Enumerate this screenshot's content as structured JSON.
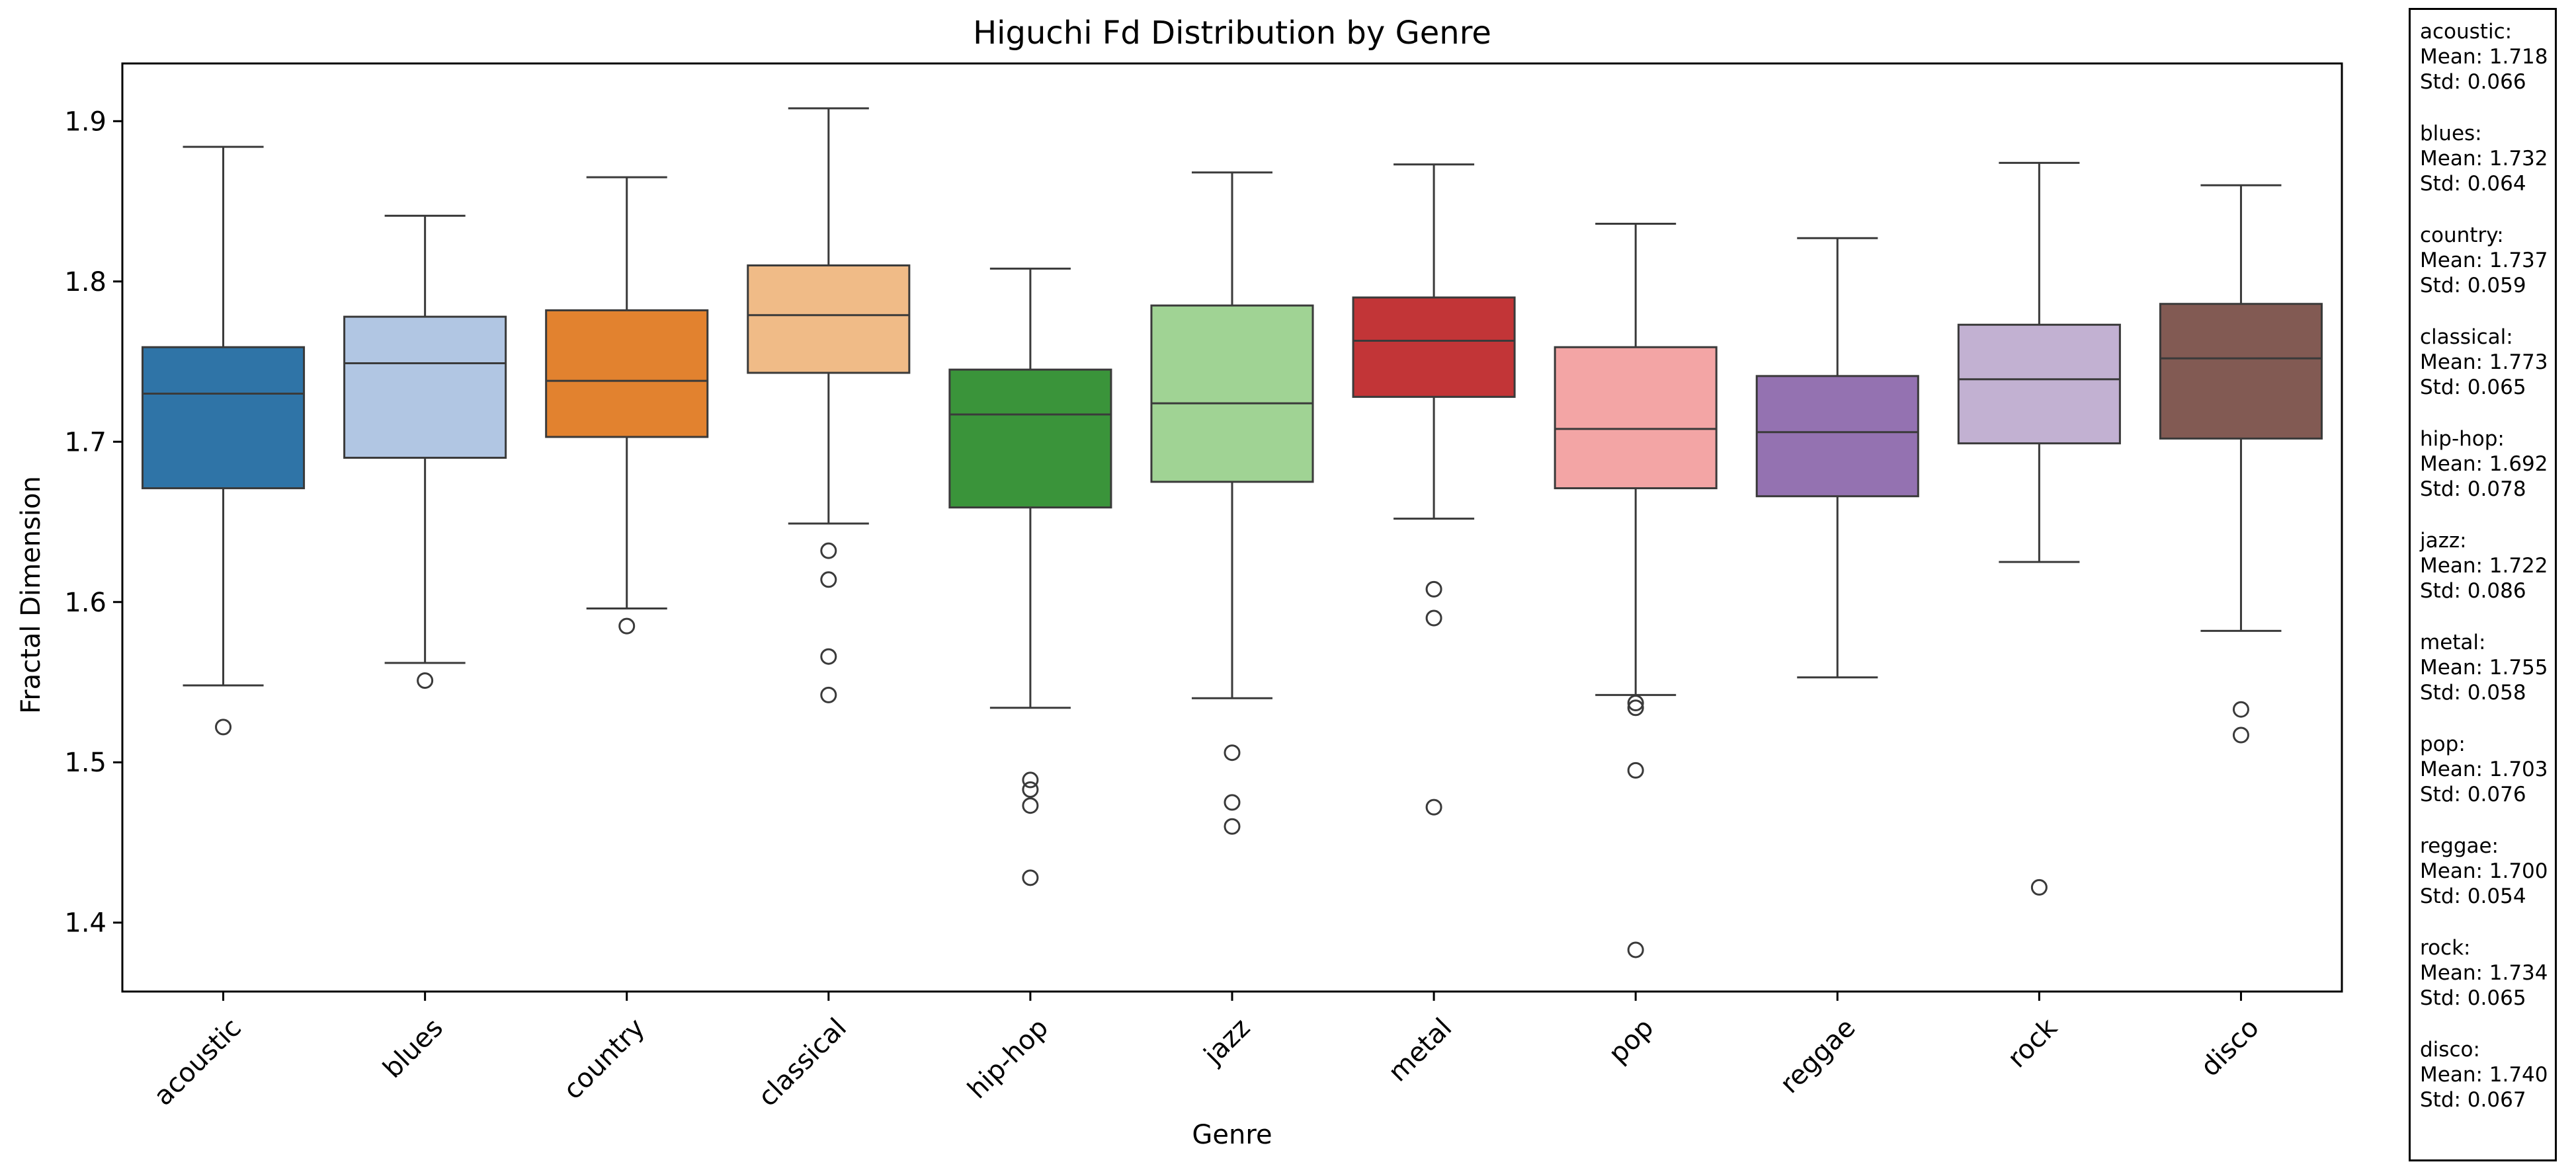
{
  "chart_data": {
    "type": "box",
    "title": "Higuchi Fd Distribution by Genre",
    "xlabel": "Genre",
    "ylabel": "Fractal Dimension",
    "ylim": [
      1.357,
      1.936
    ],
    "yticks": [
      1.4,
      1.5,
      1.6,
      1.7,
      1.8,
      1.9
    ],
    "grid": false,
    "categories": [
      "acoustic",
      "blues",
      "country",
      "classical",
      "hip-hop",
      "jazz",
      "metal",
      "pop",
      "reggae",
      "rock",
      "disco"
    ],
    "colors": [
      "#2f74a7",
      "#b1c6e3",
      "#e2822f",
      "#f0bb87",
      "#3a943a",
      "#a0d394",
      "#c23537",
      "#f3a5a5",
      "#9472b1",
      "#c2b1d2",
      "#825a53"
    ],
    "boxes": [
      {
        "genre": "acoustic",
        "whisker_low": 1.548,
        "q1": 1.671,
        "median": 1.73,
        "q3": 1.759,
        "whisker_high": 1.884,
        "outliers": [
          1.522
        ]
      },
      {
        "genre": "blues",
        "whisker_low": 1.562,
        "q1": 1.69,
        "median": 1.749,
        "q3": 1.778,
        "whisker_high": 1.841,
        "outliers": [
          1.551
        ]
      },
      {
        "genre": "country",
        "whisker_low": 1.596,
        "q1": 1.703,
        "median": 1.738,
        "q3": 1.782,
        "whisker_high": 1.865,
        "outliers": [
          1.585
        ]
      },
      {
        "genre": "classical",
        "whisker_low": 1.649,
        "q1": 1.743,
        "median": 1.779,
        "q3": 1.81,
        "whisker_high": 1.908,
        "outliers": [
          1.632,
          1.614,
          1.566,
          1.542
        ]
      },
      {
        "genre": "hip-hop",
        "whisker_low": 1.534,
        "q1": 1.659,
        "median": 1.717,
        "q3": 1.745,
        "whisker_high": 1.808,
        "outliers": [
          1.489,
          1.483,
          1.473,
          1.428
        ]
      },
      {
        "genre": "jazz",
        "whisker_low": 1.54,
        "q1": 1.675,
        "median": 1.724,
        "q3": 1.785,
        "whisker_high": 1.868,
        "outliers": [
          1.506,
          1.475,
          1.46
        ]
      },
      {
        "genre": "metal",
        "whisker_low": 1.652,
        "q1": 1.728,
        "median": 1.763,
        "q3": 1.79,
        "whisker_high": 1.873,
        "outliers": [
          1.608,
          1.59,
          1.472
        ]
      },
      {
        "genre": "pop",
        "whisker_low": 1.542,
        "q1": 1.671,
        "median": 1.708,
        "q3": 1.759,
        "whisker_high": 1.836,
        "outliers": [
          1.537,
          1.534,
          1.495,
          1.383
        ]
      },
      {
        "genre": "reggae",
        "whisker_low": 1.553,
        "q1": 1.666,
        "median": 1.706,
        "q3": 1.741,
        "whisker_high": 1.827,
        "outliers": []
      },
      {
        "genre": "rock",
        "whisker_low": 1.625,
        "q1": 1.699,
        "median": 1.739,
        "q3": 1.773,
        "whisker_high": 1.874,
        "outliers": [
          1.422
        ]
      },
      {
        "genre": "disco",
        "whisker_low": 1.582,
        "q1": 1.702,
        "median": 1.752,
        "q3": 1.786,
        "whisker_high": 1.86,
        "outliers": [
          1.533,
          1.517
        ]
      }
    ]
  },
  "stats_panel": [
    {
      "genre": "acoustic:",
      "mean": "Mean: 1.718",
      "std": "Std: 0.066"
    },
    {
      "genre": "blues:",
      "mean": "Mean: 1.732",
      "std": "Std: 0.064"
    },
    {
      "genre": "country:",
      "mean": "Mean: 1.737",
      "std": "Std: 0.059"
    },
    {
      "genre": "classical:",
      "mean": "Mean: 1.773",
      "std": "Std: 0.065"
    },
    {
      "genre": "hip-hop:",
      "mean": "Mean: 1.692",
      "std": "Std: 0.078"
    },
    {
      "genre": "jazz:",
      "mean": "Mean: 1.722",
      "std": "Std: 0.086"
    },
    {
      "genre": "metal:",
      "mean": "Mean: 1.755",
      "std": "Std: 0.058"
    },
    {
      "genre": "pop:",
      "mean": "Mean: 1.703",
      "std": "Std: 0.076"
    },
    {
      "genre": "reggae:",
      "mean": "Mean: 1.700",
      "std": "Std: 0.054"
    },
    {
      "genre": "rock:",
      "mean": "Mean: 1.734",
      "std": "Std: 0.065"
    },
    {
      "genre": "disco:",
      "mean": "Mean: 1.740",
      "std": "Std: 0.067"
    }
  ]
}
